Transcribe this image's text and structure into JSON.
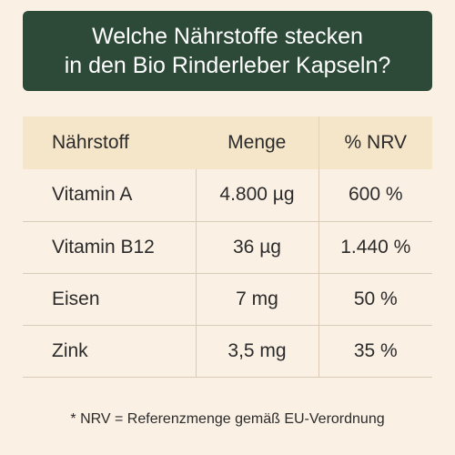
{
  "title": {
    "line1": "Welche Nährstoffe stecken",
    "line2": "in den Bio Rinderleber Kapseln?"
  },
  "table": {
    "headers": [
      "Nährstoff",
      "Menge",
      "% NRV"
    ],
    "rows": [
      [
        "Vitamin A",
        "4.800 µg",
        "600 %"
      ],
      [
        "Vitamin B12",
        "36 µg",
        "1.440 %"
      ],
      [
        "Eisen",
        "7 mg",
        "50 %"
      ],
      [
        "Zink",
        "3,5 mg",
        "35 %"
      ]
    ]
  },
  "footnote": "* NRV = Referenzmenge gemäß EU-Verordnung",
  "colors": {
    "background": "#fbf0e4",
    "banner": "#2d4a39",
    "header_row": "#f5e5c9"
  }
}
